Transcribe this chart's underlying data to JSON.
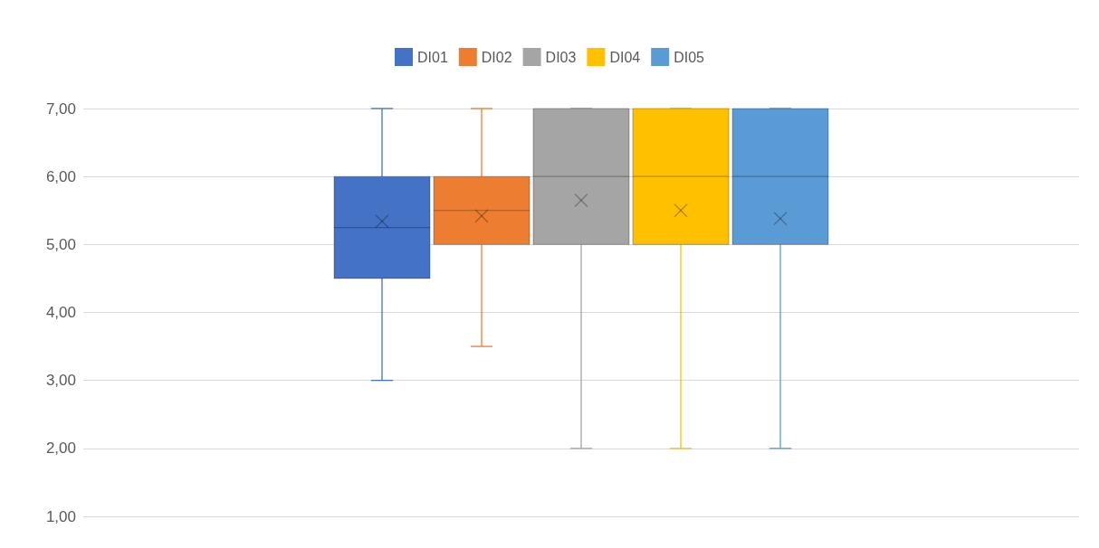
{
  "chart_data": {
    "type": "box",
    "categories": [
      null
    ],
    "series": [
      {
        "name": "DI01",
        "color": "#4472c4",
        "boxes": [
          {
            "low": 3,
            "q1": 4.5,
            "median": 5.25,
            "q3": 6,
            "high": 7,
            "mean": 5.34
          }
        ]
      },
      {
        "name": "DI02",
        "color": "#ed7d31",
        "boxes": [
          {
            "low": 3.5,
            "q1": 5,
            "median": 5.5,
            "q3": 6,
            "high": 7,
            "mean": 5.42
          }
        ]
      },
      {
        "name": "DI03",
        "color": "#a5a5a5",
        "boxes": [
          {
            "low": 2,
            "q1": 5,
            "median": 6,
            "q3": 7,
            "high": 7,
            "mean": 5.65
          }
        ]
      },
      {
        "name": "DI04",
        "color": "#ffc000",
        "boxes": [
          {
            "low": 2,
            "q1": 5,
            "median": 6,
            "q3": 7,
            "high": 7,
            "mean": 5.5
          }
        ]
      },
      {
        "name": "DI05",
        "color": "#5b9bd5",
        "boxes": [
          {
            "low": 2,
            "q1": 5,
            "median": 6,
            "q3": 7,
            "high": 7,
            "mean": 5.38
          }
        ]
      }
    ],
    "ylim": [
      1,
      7
    ],
    "yticks": [
      {
        "value": 1,
        "label": "1,00"
      },
      {
        "value": 2,
        "label": "2,00"
      },
      {
        "value": 3,
        "label": "3,00"
      },
      {
        "value": 4,
        "label": "4,00"
      },
      {
        "value": 5,
        "label": "5,00"
      },
      {
        "value": 6,
        "label": "6,00"
      },
      {
        "value": 7,
        "label": "7,00"
      }
    ],
    "grid": "y",
    "legend": "top",
    "marker": "cross"
  }
}
